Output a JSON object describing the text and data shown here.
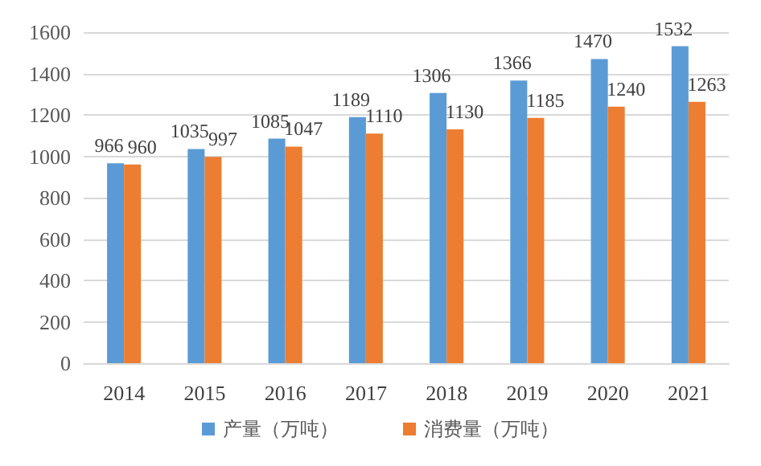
{
  "chart_data": {
    "type": "bar",
    "categories": [
      "2014",
      "2015",
      "2016",
      "2017",
      "2018",
      "2019",
      "2020",
      "2021"
    ],
    "series": [
      {
        "name": "产量（万吨）",
        "color": "#5b9bd5",
        "values": [
          966,
          1035,
          1085,
          1189,
          1306,
          1366,
          1470,
          1532
        ]
      },
      {
        "name": "消费量（万吨）",
        "color": "#ed7d31",
        "values": [
          960,
          997,
          1047,
          1110,
          1130,
          1185,
          1240,
          1263
        ]
      }
    ],
    "ylim": [
      0,
      1600
    ],
    "yticks": [
      0,
      200,
      400,
      600,
      800,
      1000,
      1200,
      1400,
      1600
    ],
    "grid": "y",
    "legend": "bottom",
    "data_labels": true
  }
}
